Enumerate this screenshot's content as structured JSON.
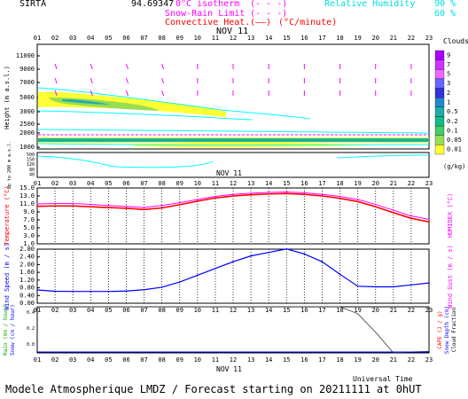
{
  "header": {
    "station": "SIRTA",
    "coords": "94.69347",
    "isotherm_label": "0°C isotherm",
    "isotherm_key": "(- - -)",
    "snowrain_label": "Snow-Rain Limit",
    "snowrain_key": "(- - -)",
    "convective_label": "Convective Heat.",
    "convective_key": "(——)",
    "convective_unit": "(°C/minute)",
    "rh_label": "Relative Humidity",
    "rh_90": "90 %",
    "rh_60": "60 %"
  },
  "date_label": "NOV 11",
  "axis_title_time": "Universal Time",
  "footer": "Modele Atmospherique LMDZ / Forecast starting on 20211111 at 0hUT",
  "hours": [
    "01",
    "02",
    "03",
    "04",
    "05",
    "06",
    "07",
    "08",
    "09",
    "10",
    "11",
    "12",
    "13",
    "14",
    "15",
    "16",
    "17",
    "18",
    "19",
    "20",
    "21",
    "22",
    "23"
  ],
  "colors": {
    "temperature": "#ff0000",
    "humidex": "#ff00ff",
    "wind": "#0000ff",
    "wind_gust": "#ff00ff",
    "rain": "#00aa00",
    "cape": "#ff0000",
    "cloud_contour": "#00ffff",
    "grid_dot": "#000000"
  },
  "clouds_colorbar": {
    "title": "Clouds",
    "unit": "(g/kg)",
    "ticks": [
      "9",
      "7",
      "5",
      "3",
      "2",
      "1",
      "0.5",
      "0.2",
      "0.1",
      "0.05",
      "0.01"
    ],
    "colors": [
      "#aa00ff",
      "#cc33ff",
      "#ee66ff",
      "#6666ff",
      "#3333dd",
      "#2288cc",
      "#22aaaa",
      "#11bb88",
      "#44cc66",
      "#99dd55",
      "#ffff33"
    ]
  },
  "panels": {
    "height": {
      "ylabel": "Height  (m a.s.l.)",
      "ticks": [
        "11000",
        "9000",
        "7000",
        "5000",
        "3000",
        "2500",
        "2000",
        "1000",
        "500",
        "250",
        "150",
        "140",
        "120",
        "100",
        "80",
        "60",
        "40",
        "20"
      ],
      "sub_ylabel": "Up to 200 m a.s.l."
    },
    "temperature": {
      "ylabel": "Temperature (°C)",
      "ylabel_right": "HUMIDEX (°C)",
      "ticks": [
        "15.0",
        "13.0",
        "11.0",
        "9.0",
        "7.0",
        "5.0",
        "3.0",
        "1.0"
      ]
    },
    "wind": {
      "ylabel": "Wind Speed (m / s)",
      "ylabel_right": "Wind Gust (m / s)",
      "ticks": [
        "2.80",
        "2.40",
        "2.00",
        "1.60",
        "1.20",
        "0.80",
        "0.40",
        "0.00"
      ]
    },
    "rain": {
      "ylabel_rain": "Rain (mm / hour)",
      "ylabel_snow": "Snow (cm / hour)",
      "ylabel_right1": "CAPE (J / g)",
      "ylabel_right2": "Snow Depth (cm)",
      "ylabel_right3": "Cloud Fraction"
    }
  },
  "chart_data": {
    "type": "line",
    "x": [
      "01",
      "02",
      "03",
      "04",
      "05",
      "06",
      "07",
      "08",
      "09",
      "10",
      "11",
      "12",
      "13",
      "14",
      "15",
      "16",
      "17",
      "18",
      "19",
      "20",
      "21",
      "22",
      "23"
    ],
    "series": [
      {
        "name": "Temperature",
        "values": [
          10.4,
          10.5,
          10.5,
          10.3,
          10.1,
          9.9,
          9.6,
          10.0,
          10.8,
          11.7,
          12.5,
          13.0,
          13.3,
          13.5,
          13.6,
          13.4,
          13.0,
          12.4,
          11.6,
          10.3,
          8.8,
          7.4,
          6.5
        ]
      },
      {
        "name": "HUMIDEX",
        "values": [
          11.0,
          11.1,
          11.1,
          10.9,
          10.6,
          10.4,
          10.1,
          10.6,
          11.3,
          12.1,
          12.9,
          13.4,
          13.7,
          13.9,
          14.0,
          13.8,
          13.4,
          12.9,
          12.1,
          10.9,
          9.4,
          8.0,
          7.1
        ]
      },
      {
        "name": "Wind Speed",
        "values": [
          0.69,
          0.62,
          0.61,
          0.61,
          0.61,
          0.63,
          0.7,
          0.83,
          1.1,
          1.45,
          1.8,
          2.15,
          2.45,
          2.63,
          2.81,
          2.55,
          2.15,
          1.5,
          0.88,
          0.85,
          0.85,
          0.95,
          1.05
        ]
      },
      {
        "name": "Cloud Fraction",
        "values": [
          1.0,
          1.0,
          1.0,
          1.0,
          1.0,
          1.0,
          1.0,
          1.0,
          1.0,
          1.0,
          1.0,
          1.0,
          1.0,
          1.0,
          1.0,
          1.0,
          1.0,
          1.0,
          0.85,
          0.45,
          0.0,
          0.02,
          0.03
        ]
      }
    ],
    "ylim_temperature": [
      1.0,
      15.0
    ],
    "ylim_wind": [
      0.0,
      2.8
    ],
    "xlabel": "Universal Time"
  }
}
